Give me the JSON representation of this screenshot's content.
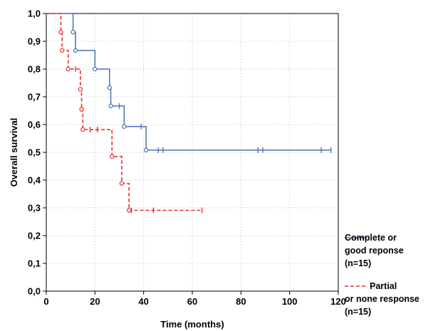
{
  "chart_data": {
    "type": "line",
    "subtype": "kaplan-meier step",
    "title": "",
    "xlabel": "Time (months)",
    "ylabel": "Overall survival",
    "xlim": [
      0,
      120
    ],
    "ylim": [
      0,
      1
    ],
    "x_ticks": [
      "0",
      "20",
      "40",
      "60",
      "80",
      "100",
      "120"
    ],
    "y_ticks": [
      "0,0",
      "0,1",
      "0,2",
      "0,3",
      "0,4",
      "0,5",
      "0,6",
      "0,7",
      "0,8",
      "0,9",
      "1,0"
    ],
    "grid": true,
    "legend_position": "right",
    "series": [
      {
        "name": "Complete or good reponse (n=15)",
        "legend_lines": [
          "Complete or",
          "good reponse",
          "(n=15)"
        ],
        "color": "#4a6fb5",
        "line_style": "solid",
        "step_x": [
          0,
          11,
          12,
          20,
          26,
          26.5,
          32,
          41,
          117
        ],
        "step_y": [
          1.0,
          0.933,
          0.867,
          0.8,
          0.733,
          0.667,
          0.593,
          0.508,
          0.508
        ],
        "events": [
          {
            "x": 11,
            "y": 0.933
          },
          {
            "x": 12,
            "y": 0.867
          },
          {
            "x": 20,
            "y": 0.8
          },
          {
            "x": 26,
            "y": 0.733
          },
          {
            "x": 26.5,
            "y": 0.667
          },
          {
            "x": 32,
            "y": 0.593
          },
          {
            "x": 41,
            "y": 0.508
          }
        ],
        "censored": [
          {
            "x": 30,
            "y": 0.667
          },
          {
            "x": 39,
            "y": 0.593
          },
          {
            "x": 46,
            "y": 0.508
          },
          {
            "x": 48,
            "y": 0.508
          },
          {
            "x": 87,
            "y": 0.508
          },
          {
            "x": 89,
            "y": 0.508
          },
          {
            "x": 113,
            "y": 0.508
          },
          {
            "x": 117,
            "y": 0.508
          }
        ]
      },
      {
        "name": "Partial or none response (n=15)",
        "legend_lines": [
          "Partial",
          "or none response",
          "(n=15)"
        ],
        "color": "#e8302b",
        "line_style": "dashed",
        "step_x": [
          0,
          6,
          6.5,
          9,
          14,
          14.5,
          15,
          27,
          31,
          34,
          64
        ],
        "step_y": [
          1.0,
          0.933,
          0.867,
          0.8,
          0.727,
          0.655,
          0.582,
          0.485,
          0.388,
          0.291,
          0.291
        ],
        "events": [
          {
            "x": 6,
            "y": 0.933
          },
          {
            "x": 6.5,
            "y": 0.867
          },
          {
            "x": 9,
            "y": 0.8
          },
          {
            "x": 14,
            "y": 0.727
          },
          {
            "x": 14.5,
            "y": 0.655
          },
          {
            "x": 15,
            "y": 0.582
          },
          {
            "x": 27,
            "y": 0.485
          },
          {
            "x": 31,
            "y": 0.388
          },
          {
            "x": 34,
            "y": 0.291
          }
        ],
        "censored": [
          {
            "x": 12,
            "y": 0.8
          },
          {
            "x": 18,
            "y": 0.582
          },
          {
            "x": 21,
            "y": 0.582
          },
          {
            "x": 35,
            "y": 0.291
          },
          {
            "x": 44,
            "y": 0.291
          },
          {
            "x": 64,
            "y": 0.291
          }
        ]
      }
    ]
  }
}
